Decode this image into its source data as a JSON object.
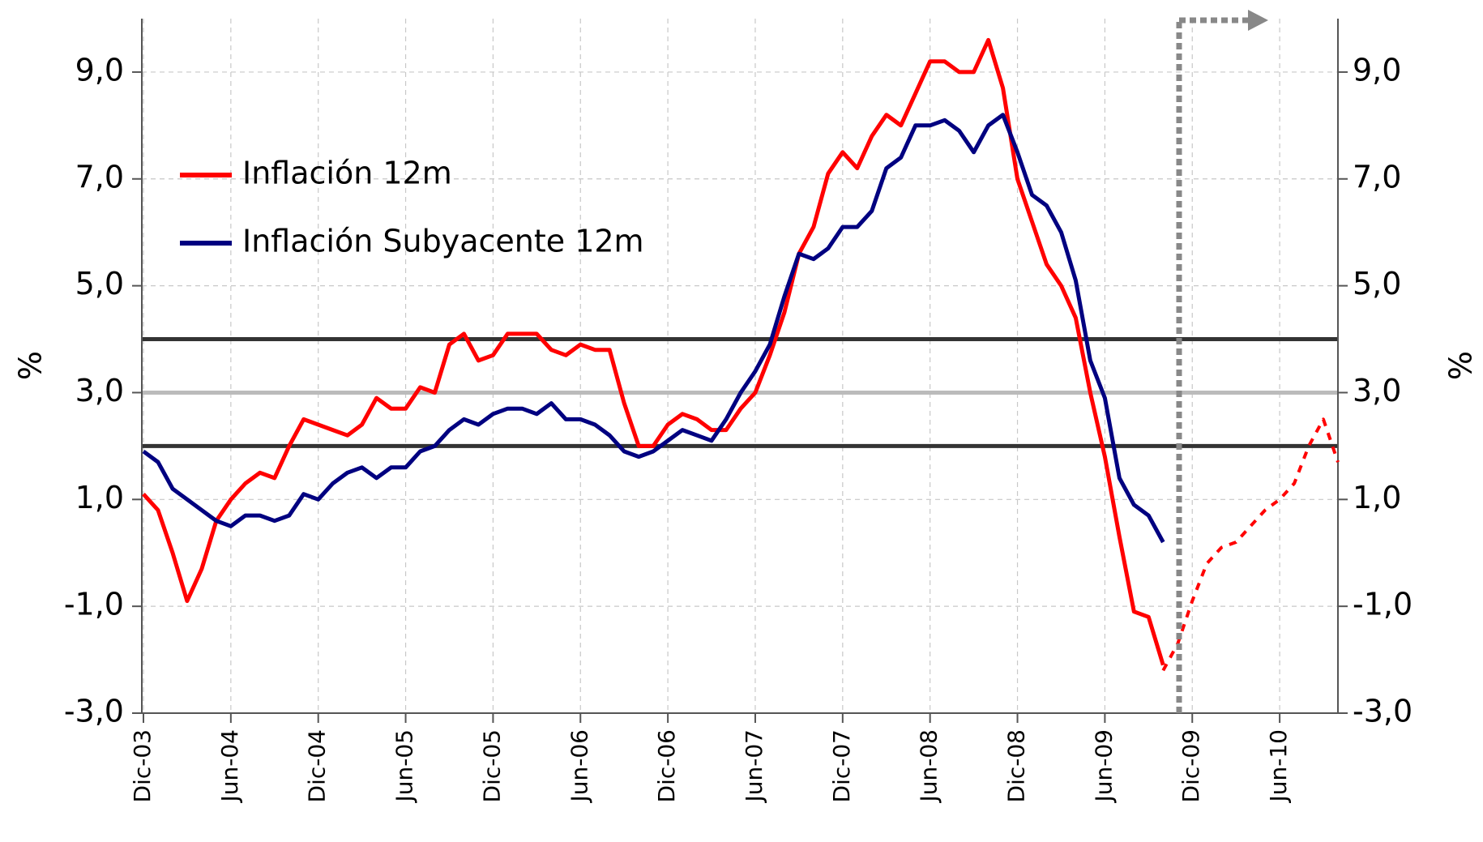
{
  "chart_data": {
    "type": "line",
    "ylabel": "%",
    "y2label": "%",
    "categories": [
      "Dic-03",
      null,
      null,
      null,
      null,
      null,
      "Jun-04",
      null,
      null,
      null,
      null,
      null,
      "Dic-04",
      null,
      null,
      null,
      null,
      null,
      "Jun-05",
      null,
      null,
      null,
      null,
      null,
      "Dic-05",
      null,
      null,
      null,
      null,
      null,
      "Jun-06",
      null,
      null,
      null,
      null,
      null,
      "Dic-06",
      null,
      null,
      null,
      null,
      null,
      "Jun-07",
      null,
      null,
      null,
      null,
      null,
      "Dic-07",
      null,
      null,
      null,
      null,
      null,
      "Jun-08",
      null,
      null,
      null,
      null,
      null,
      "Dic-08",
      null,
      null,
      null,
      null,
      null,
      "Jun-09",
      null,
      null,
      null,
      null,
      null,
      "Dic-09",
      null,
      null,
      null,
      null,
      null,
      "Jun-10",
      null,
      null,
      null,
      null
    ],
    "series": [
      {
        "name": "Inflación 12m",
        "color": "#ff0000",
        "dashed": false,
        "values": [
          1.1,
          0.8,
          0.0,
          -0.9,
          -0.3,
          0.6,
          1.0,
          1.3,
          1.5,
          1.4,
          2.0,
          2.5,
          2.4,
          2.3,
          2.2,
          2.4,
          2.9,
          2.7,
          2.7,
          3.1,
          3.0,
          3.9,
          4.1,
          3.6,
          3.7,
          4.1,
          4.1,
          4.1,
          3.8,
          3.7,
          3.9,
          3.8,
          3.8,
          2.8,
          2.0,
          2.0,
          2.4,
          2.6,
          2.5,
          2.3,
          2.3,
          2.7,
          3.0,
          3.7,
          4.5,
          5.6,
          6.1,
          7.1,
          7.5,
          7.2,
          7.8,
          8.2,
          8.0,
          8.6,
          9.2,
          9.2,
          9.0,
          9.0,
          9.6,
          8.7,
          7.0,
          6.2,
          5.4,
          5.0,
          4.4,
          3.0,
          1.8,
          0.3,
          -1.1,
          -1.2,
          -2.1,
          null,
          null,
          null,
          null,
          null,
          null,
          null,
          null,
          null,
          null,
          null,
          null
        ]
      },
      {
        "name": "Inflación Subyacente 12m",
        "color": "#000080",
        "dashed": false,
        "values": [
          1.9,
          1.7,
          1.2,
          1.0,
          0.8,
          0.6,
          0.5,
          0.7,
          0.7,
          0.6,
          0.7,
          1.1,
          1.0,
          1.3,
          1.5,
          1.6,
          1.4,
          1.6,
          1.6,
          1.9,
          2.0,
          2.3,
          2.5,
          2.4,
          2.6,
          2.7,
          2.7,
          2.6,
          2.8,
          2.5,
          2.5,
          2.4,
          2.2,
          1.9,
          1.8,
          1.9,
          2.1,
          2.3,
          2.2,
          2.1,
          2.5,
          3.0,
          3.4,
          3.9,
          4.8,
          5.6,
          5.5,
          5.7,
          6.1,
          6.1,
          6.4,
          7.2,
          7.4,
          8.0,
          8.0,
          8.1,
          7.9,
          7.5,
          8.0,
          8.2,
          7.5,
          6.7,
          6.5,
          6.0,
          5.1,
          3.6,
          2.9,
          1.4,
          0.9,
          0.7,
          0.2,
          null,
          null,
          null,
          null,
          null,
          null,
          null,
          null,
          null,
          null,
          null,
          null
        ]
      },
      {
        "color": "#ff0000",
        "dashed": true,
        "values": [
          null,
          null,
          null,
          null,
          null,
          null,
          null,
          null,
          null,
          null,
          null,
          null,
          null,
          null,
          null,
          null,
          null,
          null,
          null,
          null,
          null,
          null,
          null,
          null,
          null,
          null,
          null,
          null,
          null,
          null,
          null,
          null,
          null,
          null,
          null,
          null,
          null,
          null,
          null,
          null,
          null,
          null,
          null,
          null,
          null,
          null,
          null,
          null,
          null,
          null,
          null,
          null,
          null,
          null,
          null,
          null,
          null,
          null,
          null,
          null,
          null,
          null,
          null,
          null,
          null,
          null,
          null,
          null,
          null,
          null,
          -2.2,
          -1.7,
          -0.9,
          -0.2,
          0.1,
          0.2,
          0.5,
          0.8,
          1.0,
          1.3,
          2.0,
          2.5,
          1.7
        ]
      }
    ],
    "reference_lines": [
      {
        "value": 4,
        "color": "#333333"
      },
      {
        "value": 3,
        "color": "#bbbbbb"
      },
      {
        "value": 2,
        "color": "#333333"
      }
    ],
    "ylim": [
      -3,
      10
    ],
    "yticks": [
      {
        "value": -3,
        "label": "-3,0"
      },
      {
        "value": -1,
        "label": "-1,0"
      },
      {
        "value": 1,
        "label": "1,0"
      },
      {
        "value": 3,
        "label": "3,0"
      },
      {
        "value": 5,
        "label": "5,0"
      },
      {
        "value": 7,
        "label": "7,0"
      },
      {
        "value": 9,
        "label": "9,0"
      }
    ],
    "y2lim": [
      -3,
      10
    ],
    "y2ticks": [
      {
        "value": -3,
        "label": "-3,0"
      },
      {
        "value": -1,
        "label": "-1,0"
      },
      {
        "value": 1,
        "label": "1,0"
      },
      {
        "value": 3,
        "label": "3,0"
      },
      {
        "value": 5,
        "label": "5,0"
      },
      {
        "value": 7,
        "label": "7,0"
      },
      {
        "value": 9,
        "label": "9,0"
      }
    ],
    "grid": true,
    "legend": "upper left"
  }
}
